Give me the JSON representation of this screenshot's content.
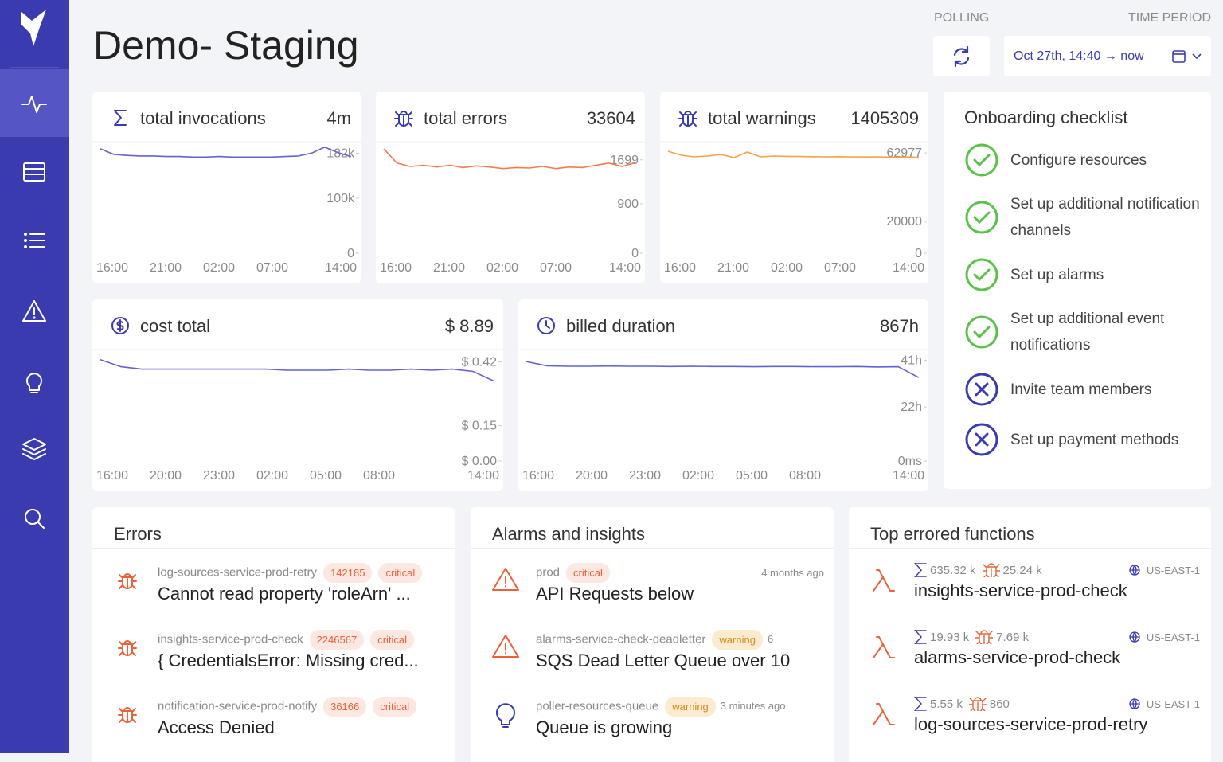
{
  "page_title": "Demo- Staging",
  "polling": {
    "label": "POLLING"
  },
  "time_period": {
    "label": "TIME PERIOD",
    "value": "Oct 27th, 14:40 → now"
  },
  "metrics": [
    {
      "title": "total invocations",
      "total": "4m",
      "icon": "sigma",
      "chart": {
        "type": "line",
        "color": "#6363d1",
        "ylim": [
          0,
          200000
        ],
        "yticks": [
          0,
          {
            "value": 100000,
            "label": "100k"
          },
          {
            "value": 182000,
            "label": "182k"
          }
        ],
        "xticks": [
          "16:00",
          "21:00",
          "02:00",
          "07:00",
          "14:00"
        ],
        "values": [
          190000,
          180000,
          178000,
          177000,
          177000,
          176000,
          176000,
          175000,
          175000,
          176000,
          175000,
          175000,
          175000,
          175000,
          176000,
          177000,
          182000,
          193000,
          183000,
          176000
        ]
      }
    },
    {
      "title": "total errors",
      "total": "33604",
      "icon": "bug",
      "chart": {
        "type": "line",
        "color": "#f27b52",
        "ylim": [
          0,
          2000
        ],
        "yticks": [
          0,
          900,
          1699
        ],
        "xticks": [
          "16:00",
          "21:00",
          "02:00",
          "07:00",
          "14:00"
        ],
        "values": [
          1900,
          1640,
          1580,
          1600,
          1570,
          1600,
          1560,
          1590,
          1570,
          1540,
          1560,
          1550,
          1580,
          1540,
          1570,
          1560,
          1600,
          1640,
          1580,
          1650
        ]
      }
    },
    {
      "title": "total warnings",
      "total": "1405309",
      "icon": "bug",
      "chart": {
        "type": "line",
        "color": "#f5a340",
        "ylim": [
          0,
          69000
        ],
        "yticks": [
          0,
          20000,
          62977
        ],
        "xticks": [
          "16:00",
          "21:00",
          "02:00",
          "07:00",
          "14:00"
        ],
        "values": [
          64000,
          61500,
          60500,
          61000,
          62000,
          60000,
          63500,
          60500,
          61000,
          60800,
          60700,
          60600,
          60500,
          60600,
          60500,
          60400,
          60500,
          60300,
          60400,
          60200
        ]
      }
    },
    {
      "title": "cost total",
      "total": "$ 8.89",
      "icon": "dollar",
      "chart": {
        "type": "line",
        "color": "#6363d1",
        "ylim": [
          0,
          0.5
        ],
        "yticks": [
          {
            "value": 0,
            "label": "$ 0.00"
          },
          {
            "value": 0.15,
            "label": "$ 0.15"
          },
          {
            "value": 0.42,
            "label": "$ 0.42"
          }
        ],
        "xticks": [
          "16:00",
          "20:00",
          "23:00",
          "02:00",
          "05:00",
          "08:00",
          "14:00"
        ],
        "values": [
          0.43,
          0.4,
          0.39,
          0.39,
          0.39,
          0.39,
          0.39,
          0.39,
          0.39,
          0.385,
          0.385,
          0.385,
          0.39,
          0.385,
          0.385,
          0.39,
          0.385,
          0.39,
          0.38,
          0.34
        ]
      }
    },
    {
      "title": "billed duration",
      "total": "867h",
      "icon": "clock",
      "chart": {
        "type": "line",
        "color": "#6363d1",
        "ylim": [
          0,
          48
        ],
        "yticks": [
          {
            "value": 0,
            "label": "0ms"
          },
          {
            "value": 22,
            "label": "22h"
          },
          {
            "value": 41,
            "label": "41h"
          }
        ],
        "xticks": [
          "16:00",
          "20:00",
          "23:00",
          "02:00",
          "05:00",
          "08:00",
          "14:00"
        ],
        "values": [
          40.5,
          38.8,
          38.6,
          38.6,
          38.7,
          38.6,
          38.6,
          38.5,
          38.6,
          38.5,
          38.5,
          38.4,
          38.5,
          38.5,
          38.4,
          38.4,
          38.5,
          38.3,
          38.4,
          34
        ]
      }
    }
  ],
  "onboarding": {
    "title": "Onboarding checklist",
    "items": [
      {
        "text": "Configure resources",
        "done": true
      },
      {
        "text": "Set up additional notification channels",
        "done": true
      },
      {
        "text": "Set up alarms",
        "done": true
      },
      {
        "text": "Set up additional event notifications",
        "done": true
      },
      {
        "text": "Invite team members",
        "done": false
      },
      {
        "text": "Set up payment methods",
        "done": false
      }
    ]
  },
  "errors": {
    "title": "Errors",
    "items": [
      {
        "service": "log-sources-service-prod-retry",
        "count": 142185,
        "severity": "critical",
        "message": "Cannot read property 'roleArn' ..."
      },
      {
        "service": "insights-service-prod-check",
        "count": 2246567,
        "severity": "critical",
        "message": "{ CredentialsError: Missing cred..."
      },
      {
        "service": "notification-service-prod-notify",
        "count": 36166,
        "severity": "critical",
        "message": "Access Denied"
      }
    ]
  },
  "alarms": {
    "title": "Alarms and insights",
    "items": [
      {
        "source": "prod",
        "severity": "critical",
        "time": "4 months ago",
        "message": "API Requests below",
        "icon": "alarm"
      },
      {
        "source": "alarms-service-check-deadletter",
        "severity": "warning",
        "time": "6",
        "message": "SQS Dead Letter Queue over 10",
        "icon": "alarm"
      },
      {
        "source": "poller-resources-queue",
        "severity": "warning",
        "time": "3 minutes ago",
        "message": "Queue is growing",
        "icon": "insight"
      }
    ]
  },
  "functions": {
    "title": "Top errored functions",
    "items": [
      {
        "invocations": "635.32 k",
        "errors": "25.24 k",
        "region": "US-EAST-1",
        "name": "insights-service-prod-check"
      },
      {
        "invocations": "19.93 k",
        "errors": "7.69 k",
        "region": "US-EAST-1",
        "name": "alarms-service-prod-check"
      },
      {
        "invocations": "5.55 k",
        "errors": "860",
        "region": "US-EAST-1",
        "name": "log-sources-service-prod-retry"
      }
    ]
  }
}
